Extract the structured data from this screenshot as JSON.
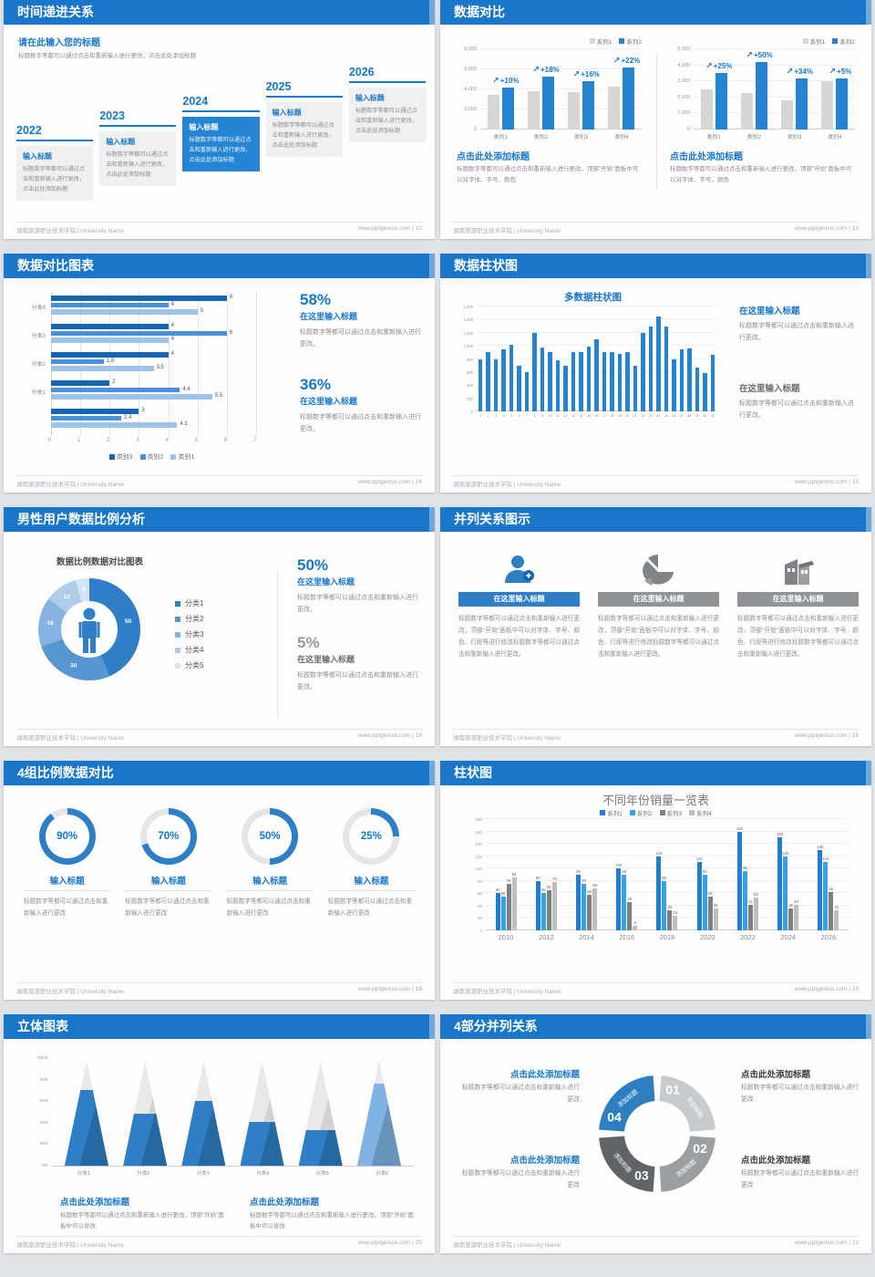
{
  "page": {
    "footer_left": "湖南旅游职业技术学院 | University Name",
    "footer_url": "www.pptgenius.com",
    "footer_sep": "|",
    "accent_blue": "#1777c8",
    "header_blue": "#1976c8"
  },
  "slides": {
    "s12": {
      "title": "时间递进关系",
      "page": "12",
      "intro_title": "请在此输入您的标题",
      "intro_body": "标题数字等都可以通过点击和重新输入进行更改，点击此处添加标题",
      "item_title": "输入标题",
      "item_body": "标题数字等都可以通过点击和重新输入进行更改，点击此处添加标题",
      "years": [
        "2022",
        "2023",
        "2024",
        "2025",
        "2026"
      ]
    },
    "s13": {
      "title": "数据对比",
      "page": "13",
      "block_title": "点击此处添加标题",
      "block_body": "标题数字等都可以通过点击和重新输入进行更改，顶部“开始”面板中可以对字体、字号、颜色"
    },
    "s14": {
      "title": "数据对比图表",
      "page": "14",
      "stats": [
        {
          "pct": "58%",
          "head": "在这里输入标题",
          "body": "标题数字等都可以通过点击和重新输入进行更改。"
        },
        {
          "pct": "36%",
          "head": "在这里输入标题",
          "body": "标题数字等都可以通过点击和重新输入进行更改。"
        }
      ]
    },
    "s15": {
      "title": "数据柱状图",
      "page": "15",
      "stats": [
        {
          "head": "在这里输入标题",
          "body": "标题数字等都可以通过点击和重新输入进行更改。"
        },
        {
          "head": "在这里输入标题",
          "body": "标题数字等都可以通过点击和重新输入进行更改。"
        }
      ]
    },
    "s16": {
      "title": "男性用户数据比例分析",
      "page": "16",
      "stats": [
        {
          "pct": "50%",
          "head": "在这里输入标题",
          "body": "标题数字等都可以通过点击和重新输入进行更改。"
        },
        {
          "pct": "5%",
          "head": "在这里输入标题",
          "body": "标题数字等都可以通过点击和重新输入进行更改。"
        }
      ]
    },
    "s17": {
      "title": "并列关系图示",
      "page": "17",
      "col_head": "在这里输入标题",
      "col_body": "标题数字等都可以通过点击和重新输入进行更改，顶部“开始”面板中可以对字体、字号、颜色、行距等进行修改标题数字等都可以通过点击和重新输入进行更改。"
    },
    "s18": {
      "title": "4组比例数据对比",
      "page": "18",
      "ring_title": "输入标题",
      "ring_body": "标题数字等都可以通过点击和重新输入进行更改"
    },
    "s19": {
      "title": "柱状图",
      "page": "19"
    },
    "s20": {
      "title": "立体图表",
      "page": "20",
      "block_title": "点击此处添加标题",
      "block_body": "标题数字等都可以通过点击和重新输入进行更改，顶部“开始”面板中可以修改"
    },
    "s21": {
      "title": "4部分并列关系",
      "page": "21",
      "block_title": "点击此处添加标题",
      "block_body": "标题数字等都可以通过点击和重新输入进行更改"
    }
  },
  "chart_data": [
    {
      "type": "bar",
      "slide": "数据对比-左图",
      "categories": [
        "类别1",
        "类别2",
        "类别3",
        "类别4"
      ],
      "ymax": 8000,
      "yticks": [
        "0",
        "2,000",
        "4,000",
        "6,000",
        "8,000"
      ],
      "series": [
        {
          "name": "系列1",
          "color": "#d6d6d6",
          "values": [
            3500,
            3800,
            3700,
            4300
          ]
        },
        {
          "name": "系列2",
          "color": "#2484d1",
          "values": [
            4200,
            5300,
            4800,
            6200
          ]
        }
      ],
      "growth_labels": [
        "+10%",
        "+18%",
        "+16%",
        "+22%"
      ]
    },
    {
      "type": "bar",
      "slide": "数据对比-右图",
      "categories": [
        "类别1",
        "类别2",
        "类别3",
        "类别4"
      ],
      "ymax": 5000,
      "yticks": [
        "0",
        "1,000",
        "2,000",
        "3,000",
        "4,000",
        "5,000"
      ],
      "series": [
        {
          "name": "系列1",
          "color": "#d6d6d6",
          "values": [
            2500,
            2300,
            1800,
            3000
          ]
        },
        {
          "name": "系列2",
          "color": "#2484d1",
          "values": [
            3500,
            4200,
            3200,
            3200
          ]
        }
      ],
      "growth_labels": [
        "+25%",
        "+50%",
        "+34%",
        "+5%"
      ]
    },
    {
      "type": "bar-horizontal",
      "slide": "数据对比图表",
      "groups": [
        "分类4",
        "分类3",
        "分类2",
        "分类1",
        ""
      ],
      "xmax": 7,
      "xticks": [
        "0",
        "1",
        "2",
        "3",
        "4",
        "5",
        "6",
        "7"
      ],
      "series": [
        {
          "name": "类别3",
          "color": "#1565b0",
          "values": [
            6,
            4,
            4,
            2,
            3
          ]
        },
        {
          "name": "类别2",
          "color": "#4a90d9",
          "values": [
            4,
            6,
            1.8,
            4.4,
            2.4
          ]
        },
        {
          "name": "类别1",
          "color": "#9dc3e6",
          "values": [
            5,
            4,
            3.5,
            5.5,
            4.3
          ]
        }
      ]
    },
    {
      "type": "bar",
      "slide": "数据柱状图",
      "title": "多数据柱状图",
      "x": [
        1,
        2,
        3,
        4,
        5,
        6,
        7,
        8,
        9,
        10,
        11,
        12,
        13,
        14,
        15,
        16,
        17,
        18,
        19,
        20,
        21,
        22,
        23,
        24,
        25,
        26,
        27,
        28,
        29,
        30,
        31
      ],
      "values": [
        800,
        900,
        800,
        950,
        1020,
        700,
        600,
        1200,
        980,
        900,
        780,
        700,
        900,
        900,
        990,
        1100,
        900,
        900,
        880,
        900,
        700,
        1200,
        1300,
        1450,
        1300,
        800,
        950,
        960,
        670,
        590,
        870
      ],
      "ymax": 1600,
      "color": "#2484d1",
      "yticks": [
        "0",
        "200",
        "400",
        "600",
        "800",
        "1,000",
        "1,200",
        "1,400",
        "1,600"
      ]
    },
    {
      "type": "pie",
      "slide": "男性用户数据比例分析",
      "title": "数据比例数据对比图表",
      "labels": [
        "分类1",
        "分类2",
        "分类3",
        "分类4",
        "分类5"
      ],
      "values": [
        50,
        30,
        18,
        12,
        5
      ],
      "colors": [
        "#2e7fc5",
        "#5696d2",
        "#85b2e0",
        "#afcceb",
        "#d4e3f5"
      ]
    },
    {
      "type": "progress-rings",
      "slide": "4组比例数据对比",
      "values": [
        90,
        70,
        50,
        25
      ],
      "labels": [
        "90%",
        "70%",
        "50%",
        "25%"
      ],
      "ring_color": "#2e7fc5",
      "track_color": "#e3e6e9"
    },
    {
      "type": "bar",
      "slide": "柱状图",
      "title": "不同年份销量一览表",
      "categories": [
        "2010",
        "2012",
        "2014",
        "2016",
        "2018",
        "2020",
        "2022",
        "2024",
        "2026"
      ],
      "ymax": 180,
      "yticks": [
        "0",
        "20",
        "40",
        "60",
        "80",
        "100",
        "120",
        "140",
        "160",
        "180"
      ],
      "series": [
        {
          "name": "系列1",
          "color": "#1f7ed0",
          "values": [
            60,
            80,
            90,
            100,
            120,
            110,
            160,
            150,
            130
          ]
        },
        {
          "name": "系列2",
          "color": "#35a3e8",
          "values": [
            55,
            60,
            75,
            90,
            80,
            90,
            96,
            120,
            110
          ]
        },
        {
          "name": "系列3",
          "color": "#7f7f7f",
          "values": [
            75,
            65,
            58,
            46,
            32,
            54,
            42,
            36,
            62
          ]
        },
        {
          "name": "系列4",
          "color": "#bfbfbf",
          "values": [
            85,
            78,
            68,
            8,
            24,
            36,
            53,
            42,
            32
          ]
        }
      ]
    },
    {
      "type": "pyramid",
      "slide": "立体图表",
      "categories": [
        "分类1",
        "分类2",
        "分类3",
        "分类4",
        "分类5",
        "分类6"
      ],
      "values": [
        72,
        50,
        62,
        42,
        34,
        78
      ],
      "fill_colors": [
        "#2e7fc5",
        "#2e7fc5",
        "#2e7fc5",
        "#2e7fc5",
        "#2e7fc5",
        "#7fb3e3"
      ],
      "yticks": [
        "0%",
        "20%",
        "40%",
        "60%",
        "80%",
        "100%"
      ]
    },
    {
      "type": "cycle",
      "slide": "4部分并列关系",
      "segments": [
        {
          "num": "01",
          "label": "添加标题",
          "color": "#c7cbd0"
        },
        {
          "num": "02",
          "label": "添加标题",
          "color": "#9a9fa4"
        },
        {
          "num": "03",
          "label": "添加标题",
          "color": "#606468"
        },
        {
          "num": "04",
          "label": "添加标题",
          "color": "#2e7fc2"
        }
      ]
    }
  ]
}
